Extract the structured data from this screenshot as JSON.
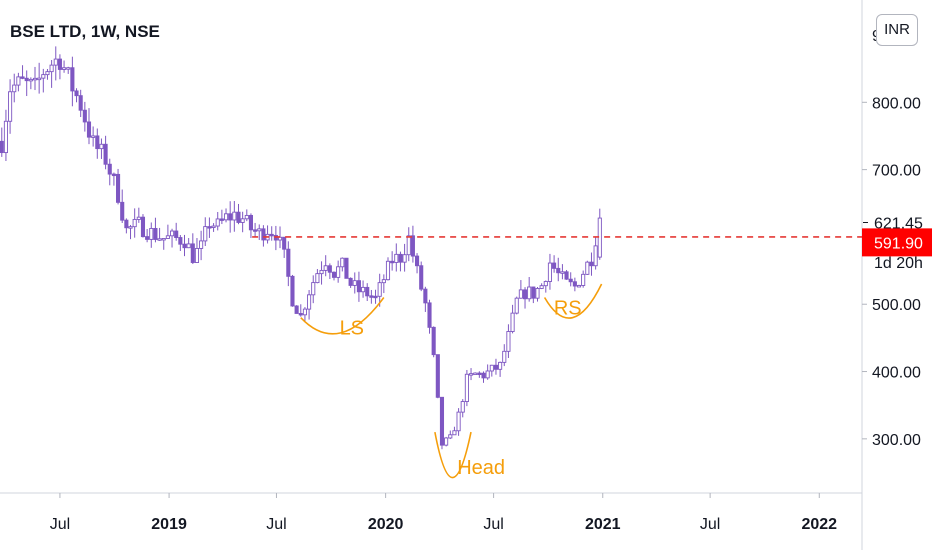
{
  "header": {
    "title": "BSE LTD, 1W, NSE",
    "currency": "INR"
  },
  "price_axis": {
    "last_price": "621.45",
    "countdown": "1d 20h",
    "marker_price": "591.90",
    "marker_color": "#ff0000"
  },
  "annotations": {
    "left_shoulder": "LS",
    "head": "Head",
    "right_shoulder": "RS"
  },
  "colors": {
    "candle": "#7e57c2",
    "neckline": "#e53935",
    "pattern": "#f59e0b",
    "axis_text": "#131722"
  },
  "chart_data": {
    "type": "candlestick",
    "title": "BSE LTD, 1W, NSE",
    "ylim": [
      224,
      952
    ],
    "yticks": [
      300,
      400,
      500,
      600,
      700,
      800
    ],
    "ytick_labels": [
      "300.00",
      "400.00",
      "500.00",
      "600.00",
      "700.00",
      "800.00"
    ],
    "xlim": [
      "2018-03-22",
      "2022-03-14"
    ],
    "xticks": [
      {
        "date": "2018-07-01",
        "label": "Jul",
        "bold": false
      },
      {
        "date": "2019-01-01",
        "label": "2019",
        "bold": true
      },
      {
        "date": "2019-07-01",
        "label": "Jul",
        "bold": false
      },
      {
        "date": "2020-01-01",
        "label": "2020",
        "bold": true
      },
      {
        "date": "2020-07-01",
        "label": "Jul",
        "bold": false
      },
      {
        "date": "2021-01-01",
        "label": "2021",
        "bold": true
      },
      {
        "date": "2021-07-01",
        "label": "Jul",
        "bold": false
      },
      {
        "date": "2022-01-01",
        "label": "2022",
        "bold": true
      }
    ],
    "neckline": {
      "value": 600,
      "from": "2019-05-21",
      "to": "2022-03-14"
    },
    "close_path": [
      [
        "2018-03-25",
        742
      ],
      [
        "2018-04-08",
        822
      ],
      [
        "2018-04-29",
        828
      ],
      [
        "2018-05-20",
        820
      ],
      [
        "2018-06-03",
        846
      ],
      [
        "2018-06-17",
        858
      ],
      [
        "2018-07-01",
        866
      ],
      [
        "2018-07-15",
        836
      ],
      [
        "2018-08-05",
        796
      ],
      [
        "2018-08-26",
        738
      ],
      [
        "2018-09-16",
        716
      ],
      [
        "2018-10-07",
        664
      ],
      [
        "2018-10-21",
        610
      ],
      [
        "2018-11-11",
        618
      ],
      [
        "2018-12-02",
        606
      ],
      [
        "2018-12-23",
        598
      ],
      [
        "2019-01-06",
        598
      ],
      [
        "2019-01-27",
        596
      ],
      [
        "2019-02-10",
        572
      ],
      [
        "2019-02-24",
        584
      ],
      [
        "2019-03-10",
        622
      ],
      [
        "2019-03-24",
        616
      ],
      [
        "2019-04-07",
        628
      ],
      [
        "2019-04-21",
        633
      ],
      [
        "2019-05-05",
        627
      ],
      [
        "2019-05-19",
        612
      ],
      [
        "2019-06-02",
        605
      ],
      [
        "2019-06-16",
        612
      ],
      [
        "2019-06-30",
        607
      ],
      [
        "2019-07-14",
        570
      ],
      [
        "2019-07-28",
        508
      ],
      [
        "2019-08-11",
        482
      ],
      [
        "2019-08-25",
        520
      ],
      [
        "2019-09-08",
        548
      ],
      [
        "2019-09-22",
        566
      ],
      [
        "2019-10-06",
        548
      ],
      [
        "2019-10-20",
        556
      ],
      [
        "2019-11-03",
        530
      ],
      [
        "2019-11-17",
        520
      ],
      [
        "2019-12-01",
        516
      ],
      [
        "2019-12-15",
        508
      ],
      [
        "2019-12-29",
        538
      ],
      [
        "2020-01-12",
        566
      ],
      [
        "2020-01-26",
        570
      ],
      [
        "2020-02-09",
        598
      ],
      [
        "2020-02-23",
        548
      ],
      [
        "2020-03-08",
        500
      ],
      [
        "2020-03-22",
        418
      ],
      [
        "2020-04-05",
        292
      ],
      [
        "2020-04-19",
        300
      ],
      [
        "2020-05-03",
        335
      ],
      [
        "2020-05-17",
        388
      ],
      [
        "2020-05-31",
        396
      ],
      [
        "2020-06-14",
        395
      ],
      [
        "2020-06-28",
        402
      ],
      [
        "2020-07-12",
        408
      ],
      [
        "2020-07-26",
        452
      ],
      [
        "2020-08-09",
        504
      ],
      [
        "2020-08-23",
        518
      ],
      [
        "2020-09-06",
        516
      ],
      [
        "2020-09-20",
        528
      ],
      [
        "2020-10-04",
        562
      ],
      [
        "2020-10-18",
        544
      ],
      [
        "2020-11-01",
        530
      ],
      [
        "2020-11-15",
        526
      ],
      [
        "2020-11-29",
        548
      ],
      [
        "2020-12-13",
        570
      ],
      [
        "2020-12-27",
        628
      ]
    ]
  }
}
